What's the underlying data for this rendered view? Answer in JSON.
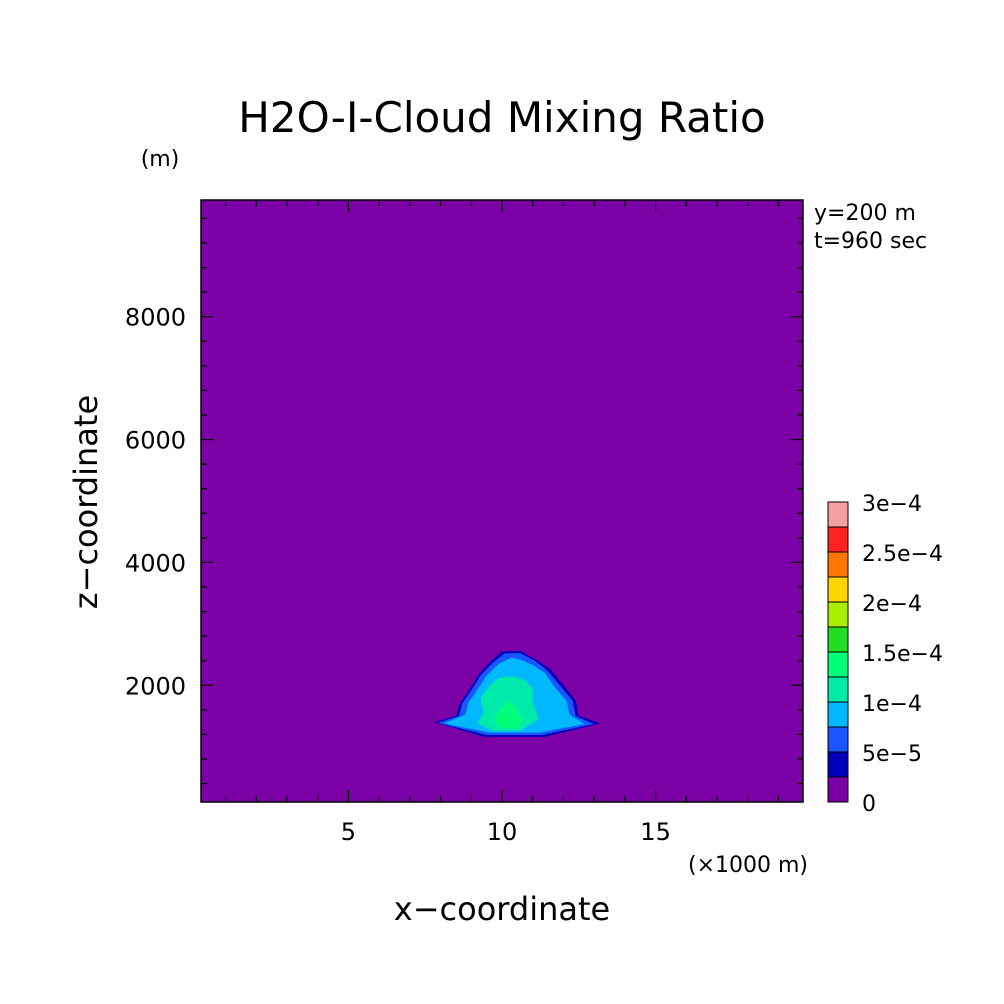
{
  "chart_data": {
    "type": "heatmap",
    "title": "H2O-I-Cloud Mixing Ratio",
    "xlabel": "x−coordinate",
    "ylabel": "z−coordinate",
    "x_unit_label": "(×1000 m)",
    "y_unit_label": "(m)",
    "annotations": [
      "y=200 m",
      "t=960 sec"
    ],
    "xlim": [
      0.2,
      19.8
    ],
    "ylim": [
      100,
      9900
    ],
    "x_ticks": [
      5,
      10,
      15
    ],
    "x_tick_labels": [
      "5",
      "10",
      "15"
    ],
    "y_ticks": [
      2000,
      4000,
      6000,
      8000
    ],
    "y_tick_labels": [
      "2000",
      "4000",
      "6000",
      "8000"
    ],
    "background_value": 0,
    "colorbar": {
      "levels": [
        0,
        2.5e-05,
        5e-05,
        7.5e-05,
        0.0001,
        0.000125,
        0.00015,
        0.000175,
        0.0002,
        0.000225,
        0.00025,
        0.000275,
        0.0003
      ],
      "labels": [
        "0",
        "5e−5",
        "1e−4",
        "1.5e−4",
        "2e−4",
        "2.5e−4",
        "3e−4"
      ],
      "label_levels": [
        0,
        5e-05,
        0.0001,
        0.00015,
        0.0002,
        0.00025,
        0.0003
      ],
      "colors": [
        "#7b00a6",
        "#0000bb",
        "#1a55ff",
        "#00b8ff",
        "#00eaaa",
        "#00ff7a",
        "#22dd22",
        "#aaee00",
        "#ffd400",
        "#ff7700",
        "#ff2222",
        "#f5a0a0"
      ]
    },
    "contours": [
      {
        "level": 2.5e-05,
        "points": [
          [
            7.8,
            1400
          ],
          [
            8.5,
            1500
          ],
          [
            8.6,
            1680
          ],
          [
            8.9,
            1900
          ],
          [
            9.2,
            2150
          ],
          [
            9.6,
            2380
          ],
          [
            10.0,
            2550
          ],
          [
            10.6,
            2560
          ],
          [
            11.1,
            2420
          ],
          [
            11.6,
            2250
          ],
          [
            12.0,
            2000
          ],
          [
            12.4,
            1750
          ],
          [
            12.5,
            1500
          ],
          [
            13.2,
            1380
          ],
          [
            11.4,
            1160
          ],
          [
            9.4,
            1160
          ]
        ]
      },
      {
        "level": 5e-05,
        "points": [
          [
            7.9,
            1390
          ],
          [
            8.6,
            1500
          ],
          [
            8.7,
            1700
          ],
          [
            9.0,
            1920
          ],
          [
            9.3,
            2160
          ],
          [
            9.7,
            2370
          ],
          [
            10.1,
            2520
          ],
          [
            10.6,
            2520
          ],
          [
            11.1,
            2390
          ],
          [
            11.5,
            2230
          ],
          [
            11.9,
            1990
          ],
          [
            12.3,
            1750
          ],
          [
            12.4,
            1500
          ],
          [
            13.0,
            1370
          ],
          [
            11.3,
            1190
          ],
          [
            9.5,
            1190
          ]
        ]
      },
      {
        "level": 7.5e-05,
        "points": [
          [
            8.1,
            1380
          ],
          [
            8.8,
            1520
          ],
          [
            8.9,
            1710
          ],
          [
            9.2,
            1930
          ],
          [
            9.5,
            2160
          ],
          [
            9.9,
            2350
          ],
          [
            10.3,
            2450
          ],
          [
            10.6,
            2420
          ],
          [
            11.0,
            2330
          ],
          [
            11.4,
            2200
          ],
          [
            11.7,
            1980
          ],
          [
            12.1,
            1750
          ],
          [
            12.2,
            1520
          ],
          [
            12.7,
            1370
          ],
          [
            11.2,
            1230
          ],
          [
            9.6,
            1230
          ]
        ]
      },
      {
        "level": 0.0001,
        "points": [
          [
            9.4,
            1550
          ],
          [
            9.3,
            1800
          ],
          [
            9.6,
            2000
          ],
          [
            9.9,
            2120
          ],
          [
            10.3,
            2150
          ],
          [
            10.7,
            2100
          ],
          [
            11.0,
            1950
          ],
          [
            11.0,
            1700
          ],
          [
            11.2,
            1460
          ],
          [
            10.6,
            1260
          ],
          [
            9.7,
            1260
          ],
          [
            9.2,
            1380
          ]
        ]
      },
      {
        "level": 0.000125,
        "points": [
          [
            9.7,
            1430
          ],
          [
            10.0,
            1650
          ],
          [
            10.2,
            1730
          ],
          [
            10.4,
            1650
          ],
          [
            10.7,
            1430
          ],
          [
            10.5,
            1300
          ],
          [
            9.9,
            1300
          ]
        ]
      }
    ]
  }
}
